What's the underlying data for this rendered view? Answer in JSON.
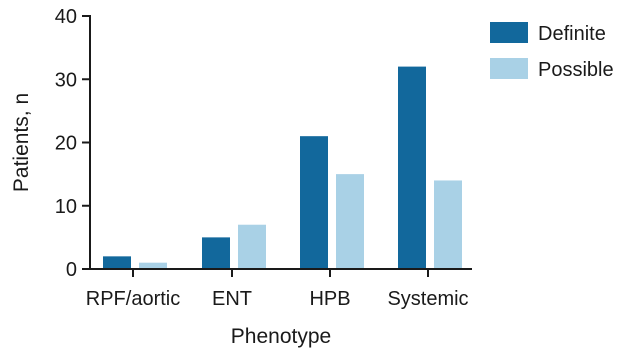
{
  "chart_data": {
    "type": "bar",
    "title": "",
    "xlabel": "Phenotype",
    "ylabel": "Patients, n",
    "categories": [
      "RPF/aortic",
      "ENT",
      "HPB",
      "Systemic"
    ],
    "series": [
      {
        "name": "Definite",
        "color": "#12689c",
        "values": [
          2,
          5,
          21,
          32
        ]
      },
      {
        "name": "Possible",
        "color": "#a9d1e6",
        "values": [
          1,
          7,
          15,
          14
        ]
      }
    ],
    "ylim": [
      0,
      40
    ],
    "yticks": [
      0,
      10,
      20,
      30,
      40
    ],
    "grid": false,
    "legend_position": "top-right"
  }
}
